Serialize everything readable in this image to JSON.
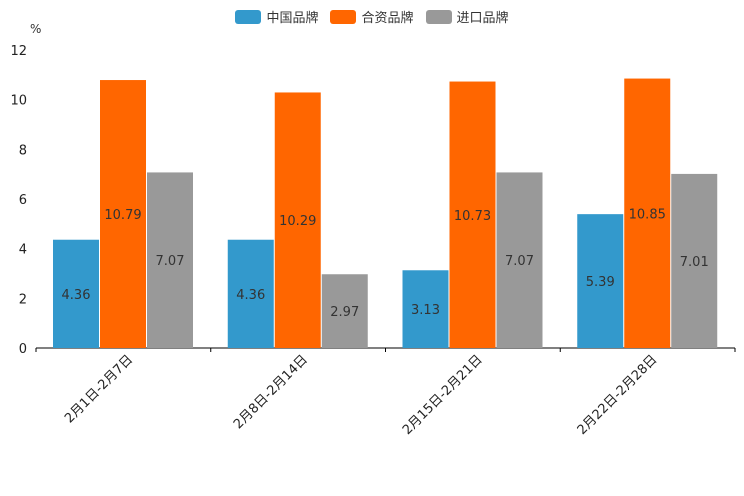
{
  "chart_data": {
    "type": "bar",
    "unit_label": "%",
    "categories": [
      "2月1日-2月7日",
      "2月8日-2月14日",
      "2月15日-2月21日",
      "2月22日-2月28日"
    ],
    "series": [
      {
        "name": "中国品牌",
        "color": "#3399cc",
        "values": [
          4.36,
          4.36,
          3.13,
          5.39
        ],
        "labels": [
          "4.36",
          "4.36",
          "3.13",
          "5.39"
        ]
      },
      {
        "name": "合资品牌",
        "color": "#ff6600",
        "values": [
          10.79,
          10.29,
          10.73,
          10.85
        ],
        "labels": [
          "10.79",
          "10.29",
          "10.73",
          "10.85"
        ]
      },
      {
        "name": "进口品牌",
        "color": "#999999",
        "values": [
          7.07,
          2.97,
          7.07,
          7.01
        ],
        "labels": [
          "7.07",
          "2.97",
          "7.07",
          "7.01"
        ]
      }
    ],
    "ylim": [
      0,
      12
    ],
    "yticks": [
      "0",
      "2",
      "4",
      "6",
      "8",
      "10",
      "12"
    ],
    "legend_position": "top-center"
  }
}
